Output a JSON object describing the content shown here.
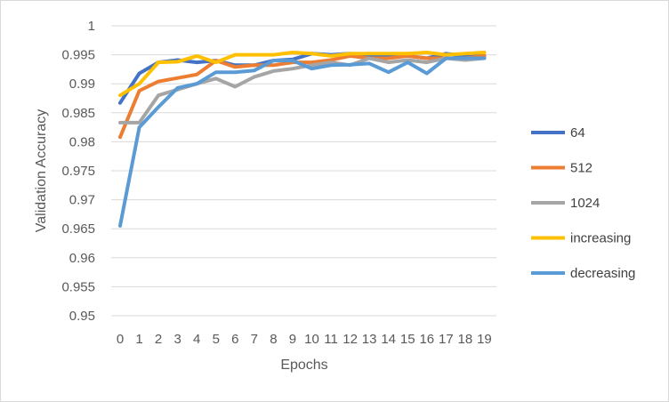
{
  "chart_data": {
    "type": "line",
    "title": "",
    "xlabel": "Epochs",
    "ylabel": "Validation Accuracy",
    "x": [
      0,
      1,
      2,
      3,
      4,
      5,
      6,
      7,
      8,
      9,
      10,
      11,
      12,
      13,
      14,
      15,
      16,
      17,
      18,
      19
    ],
    "ylim": [
      0.95,
      1
    ],
    "yticks": [
      0.95,
      0.955,
      0.96,
      0.965,
      0.97,
      0.975,
      0.98,
      0.985,
      0.99,
      0.995,
      1
    ],
    "ytick_labels": [
      "0.95",
      "0.955",
      "0.96",
      "0.965",
      "0.97",
      "0.975",
      "0.98",
      "0.985",
      "0.99",
      "0.995",
      "1"
    ],
    "grid": "horizontal",
    "legend": "right",
    "series": [
      {
        "name": "64",
        "color": "#4472C4",
        "values": [
          0.9867,
          0.9918,
          0.9937,
          0.9941,
          0.9937,
          0.994,
          0.9932,
          0.9932,
          0.994,
          0.9942,
          0.9952,
          0.995,
          0.9952,
          0.9948,
          0.9948,
          0.9948,
          0.9944,
          0.9952,
          0.9948,
          0.9948
        ]
      },
      {
        "name": "512",
        "color": "#ED7D31",
        "values": [
          0.9808,
          0.9888,
          0.9904,
          0.991,
          0.9916,
          0.994,
          0.9929,
          0.9932,
          0.9932,
          0.9937,
          0.9937,
          0.9941,
          0.9948,
          0.9944,
          0.9944,
          0.9948,
          0.9944,
          0.9944,
          0.9944,
          0.9948
        ]
      },
      {
        "name": "1024",
        "color": "#A5A5A5",
        "values": [
          0.9833,
          0.9833,
          0.988,
          0.989,
          0.99,
          0.9909,
          0.9895,
          0.9912,
          0.9922,
          0.9926,
          0.9932,
          0.9937,
          0.9932,
          0.9944,
          0.9937,
          0.9941,
          0.9937,
          0.9944,
          0.9941,
          0.9944
        ]
      },
      {
        "name": "increasing",
        "color": "#FFC000",
        "values": [
          0.988,
          0.99,
          0.9937,
          0.9938,
          0.9948,
          0.9937,
          0.995,
          0.995,
          0.995,
          0.9954,
          0.9952,
          0.9948,
          0.9952,
          0.9952,
          0.9952,
          0.9952,
          0.9954,
          0.995,
          0.9952,
          0.9954
        ]
      },
      {
        "name": "decreasing",
        "color": "#5B9BD5",
        "values": [
          0.9655,
          0.9825,
          0.986,
          0.9893,
          0.99,
          0.992,
          0.992,
          0.9923,
          0.994,
          0.994,
          0.9926,
          0.9932,
          0.9933,
          0.9935,
          0.992,
          0.9937,
          0.9918,
          0.9944,
          0.9944,
          0.9944
        ]
      }
    ]
  }
}
